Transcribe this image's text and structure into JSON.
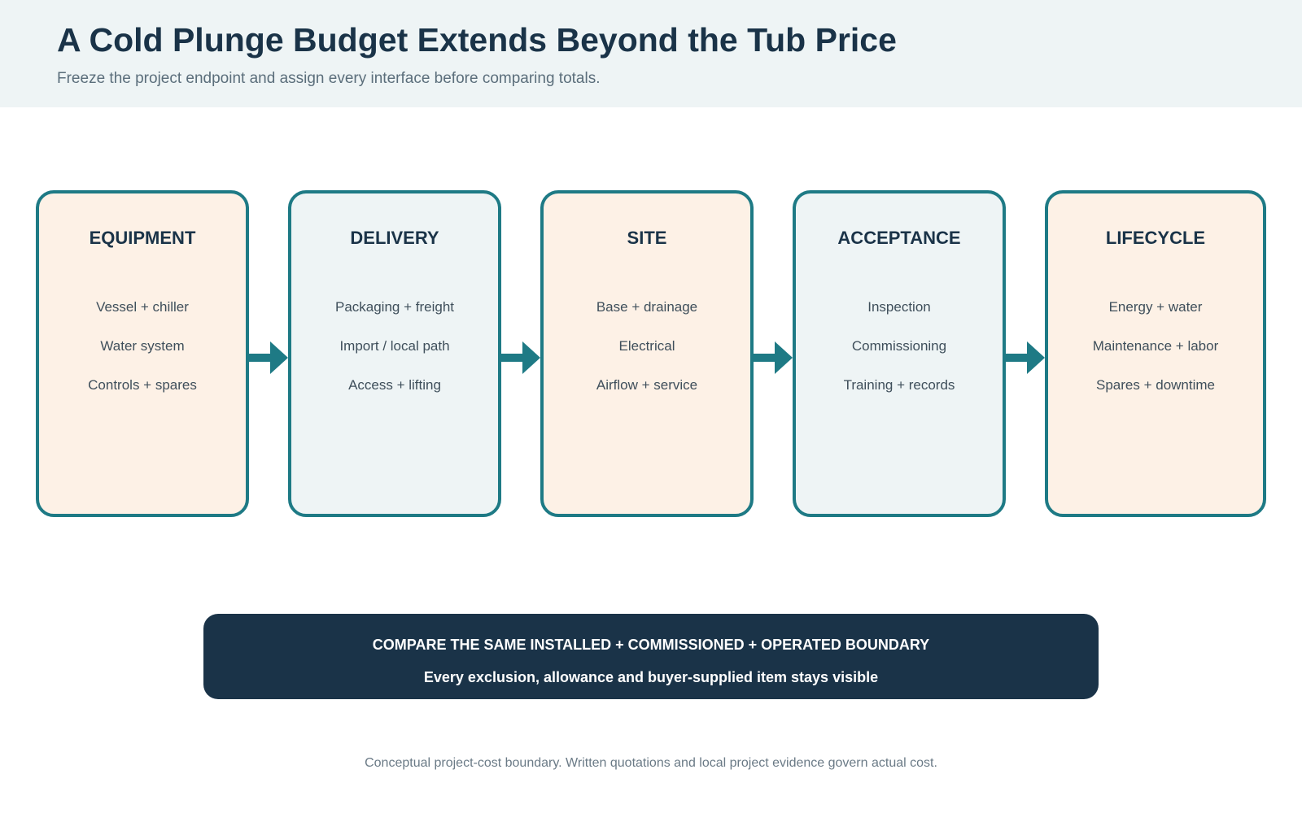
{
  "header": {
    "title": "A Cold Plunge Budget Extends Beyond the Tub Price",
    "subtitle": "Freeze the project endpoint and assign every interface before comparing totals."
  },
  "stages": [
    {
      "title": "EQUIPMENT",
      "items": [
        "Vessel + chiller",
        "Water system",
        "Controls + spares"
      ]
    },
    {
      "title": "DELIVERY",
      "items": [
        "Packaging + freight",
        "Import / local path",
        "Access + lifting"
      ]
    },
    {
      "title": "SITE",
      "items": [
        "Base + drainage",
        "Electrical",
        "Airflow + service"
      ]
    },
    {
      "title": "ACCEPTANCE",
      "items": [
        "Inspection",
        "Commissioning",
        "Training + records"
      ]
    },
    {
      "title": "LIFECYCLE",
      "items": [
        "Energy + water",
        "Maintenance + labor",
        "Spares + downtime"
      ]
    }
  ],
  "banner": {
    "line1": "COMPARE THE SAME INSTALLED + COMMISSIONED + OPERATED BOUNDARY",
    "line2": "Every exclusion, allowance and buyer-supplied item stays visible"
  },
  "footnote": "Conceptual project-cost boundary. Written quotations and local project evidence govern actual cost.",
  "colors": {
    "accent": "#1e7a85",
    "navy": "#1a3348",
    "warm_fill": "#fdf1e6",
    "cool_fill": "#eef4f5"
  },
  "icons": [
    "arrow-right-icon"
  ]
}
